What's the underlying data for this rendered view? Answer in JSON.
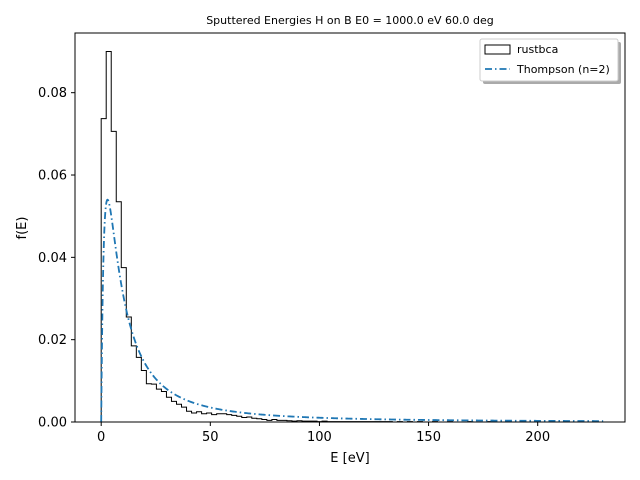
{
  "chart_data": {
    "type": "histogram",
    "title": "Sputtered Energies H on B E0 = 1000.0 eV 60.0 deg",
    "xlabel": "E [eV]",
    "ylabel": "f(E)",
    "xlim": [
      -12,
      240
    ],
    "ylim": [
      0,
      0.0945
    ],
    "xticks": [
      0,
      50,
      100,
      150,
      200
    ],
    "yticks": [
      0.0,
      0.02,
      0.04,
      0.06,
      0.08
    ],
    "ytick_labels": [
      "0.00",
      "0.02",
      "0.04",
      "0.06",
      "0.08"
    ],
    "grid": false,
    "legend": "top-right",
    "histogram": {
      "name": "rustbca",
      "color": "#000000",
      "bin_width": 2.3,
      "values": [
        0.0737,
        0.09,
        0.0706,
        0.0535,
        0.0375,
        0.0255,
        0.0185,
        0.0157,
        0.0125,
        0.0093,
        0.0092,
        0.008,
        0.0074,
        0.006,
        0.005,
        0.0043,
        0.0036,
        0.0026,
        0.0022,
        0.0025,
        0.002,
        0.0022,
        0.0018,
        0.002,
        0.002,
        0.0018,
        0.0016,
        0.0014,
        0.0011,
        0.0012,
        0.0009,
        0.0008,
        0.0006,
        0.0004,
        0.0006,
        0.0004,
        0.0004,
        0.0003,
        0.0002,
        0.0003,
        0.0002,
        0.0002,
        0.0002,
        0.0001,
        0.0002,
        0.0001,
        0.0001,
        0.0001,
        0.0001,
        0.0001,
        0.0001,
        0.0001,
        0.0001,
        0.0001,
        0.0001,
        0.0001,
        0.0001,
        0.0001,
        0.0,
        0.0001,
        0.0,
        0.0001,
        0.0,
        0.0001,
        0.0,
        0.0,
        0.0001,
        0.0,
        0.0,
        0.0001,
        0.0,
        0.0,
        0.0,
        0.0001,
        0.0,
        0.0,
        0.0,
        0.0001,
        0.0,
        0.0,
        0.0,
        0.0,
        0.0,
        0.0,
        0.0,
        0.0,
        0.0,
        0.0,
        0.0,
        0.0,
        0.0,
        0.0,
        0.0,
        0.0,
        0.0,
        0.0,
        0.0,
        0.0,
        0.0,
        0.0
      ]
    },
    "curve": {
      "name": "Thompson (n=2)",
      "color": "#1f77b4",
      "style": "dash-dot",
      "x_max": 230,
      "peak_x": 2.9,
      "peak_y": 0.054
    }
  }
}
